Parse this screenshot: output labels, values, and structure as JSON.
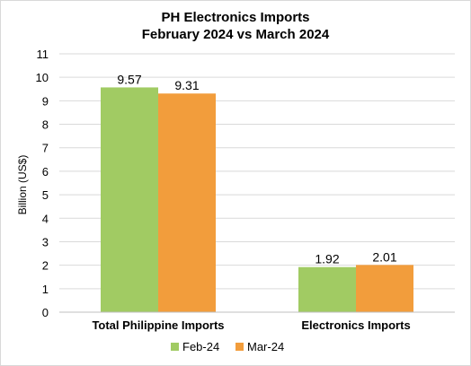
{
  "chart_data": {
    "type": "bar",
    "title": "PH Electronics Imports",
    "subtitle": "February 2024 vs March 2024",
    "xlabel": "",
    "ylabel": "Billion (US$)",
    "ylim": [
      0,
      11
    ],
    "yticks": [
      0,
      1,
      2,
      3,
      4,
      5,
      6,
      7,
      8,
      9,
      10,
      11
    ],
    "grid": true,
    "legend": "bottom",
    "categories": [
      "Total Philippine Imports",
      "Electronics Imports"
    ],
    "series": [
      {
        "name": "Feb-24",
        "values": [
          9.57,
          1.92
        ],
        "labels": [
          "9.57",
          "1.92"
        ],
        "color": "#a1cb63"
      },
      {
        "name": "Mar-24",
        "values": [
          9.31,
          2.01
        ],
        "labels": [
          "9.31",
          "2.01"
        ],
        "color": "#f29d3c"
      }
    ]
  }
}
